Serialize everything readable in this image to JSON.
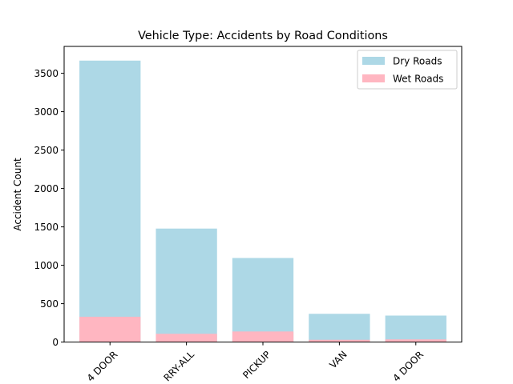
{
  "chart_data": {
    "type": "bar",
    "stacked": "overlay",
    "title": "Vehicle Type: Accidents by Road Conditions",
    "xlabel": "",
    "ylabel": "Accident Count",
    "ylim": [
      0,
      3850
    ],
    "yticks": [
      0,
      500,
      1000,
      1500,
      2000,
      2500,
      3000,
      3500
    ],
    "categories": [
      "4 DOOR",
      "RRY-ALL",
      "PICKUP",
      "VAN",
      "4 DOOR"
    ],
    "series": [
      {
        "name": "Dry Roads",
        "color": "#add8e6",
        "values": [
          3665,
          1478,
          1095,
          368,
          345
        ]
      },
      {
        "name": "Wet Roads",
        "color": "#ffb6c1",
        "values": [
          330,
          108,
          138,
          30,
          35
        ]
      }
    ],
    "legend_position": "top-right",
    "grid": false
  }
}
